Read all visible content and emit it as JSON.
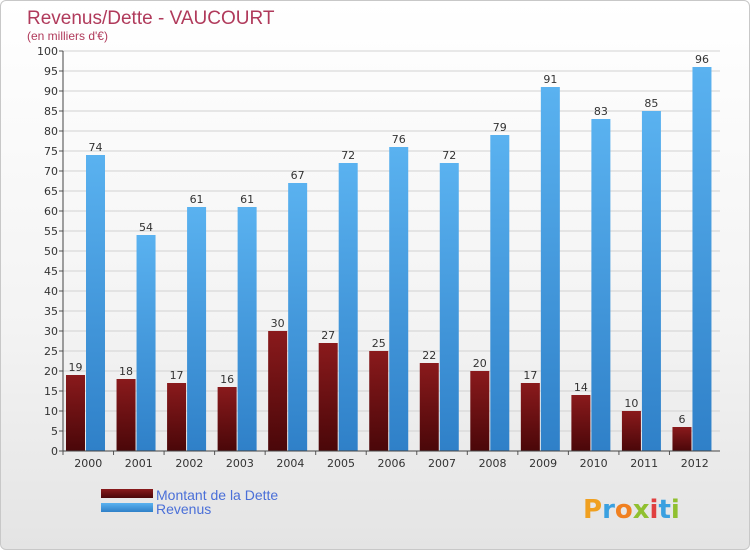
{
  "chart_data": {
    "type": "bar",
    "title": "Revenus/Dette - VAUCOURT",
    "subtitle": "(en milliers d'€)",
    "xlabel": "",
    "ylabel": "",
    "ylim": [
      0,
      100
    ],
    "ytick_step": 5,
    "grid": true,
    "categories": [
      "2000",
      "2001",
      "2002",
      "2003",
      "2004",
      "2005",
      "2006",
      "2007",
      "2008",
      "2009",
      "2010",
      "2011",
      "2012"
    ],
    "series": [
      {
        "name": "Montant de la Dette",
        "color": "#7a1416",
        "values": [
          19,
          18,
          17,
          16,
          30,
          27,
          25,
          22,
          20,
          17,
          14,
          10,
          6
        ]
      },
      {
        "name": "Revenus",
        "color": "#4aa3e8",
        "values": [
          74,
          54,
          61,
          61,
          67,
          72,
          76,
          72,
          79,
          91,
          83,
          85,
          96
        ]
      }
    ],
    "legend_position": "bottom-left"
  },
  "logo": {
    "letters": [
      "P",
      "r",
      "o",
      "x",
      "i",
      "t",
      "i"
    ],
    "colors": [
      "#f0a020",
      "#3aa0e0",
      "#f08020",
      "#90c030",
      "#e04040",
      "#3aa0e0",
      "#90c030"
    ]
  }
}
